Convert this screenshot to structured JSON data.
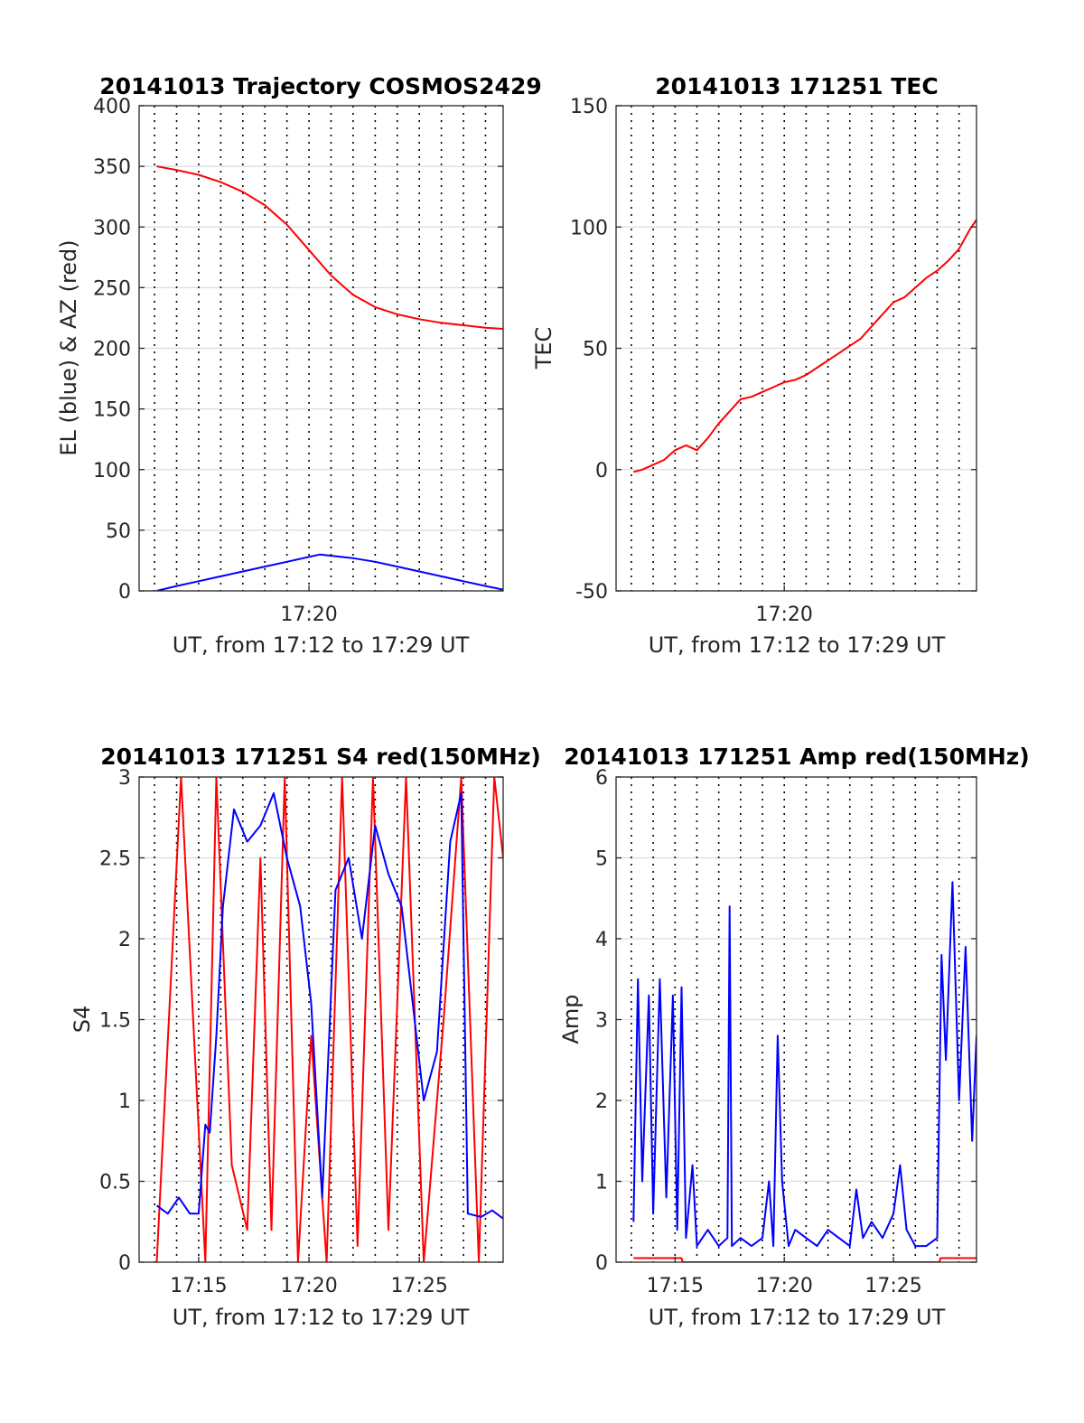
{
  "figure": {
    "panels": [
      {
        "id": "trajectory",
        "title": "20141013 Trajectory COSMOS2429",
        "ylabel": "EL (blue) & AZ (red)",
        "xlabel": "UT, from 17:12 to 17:29 UT",
        "yticks": [
          "0",
          "50",
          "100",
          "150",
          "200",
          "250",
          "300",
          "350",
          "400"
        ],
        "xticks": [
          "17:20"
        ]
      },
      {
        "id": "tec",
        "title": "20141013 171251 TEC",
        "ylabel": "TEC",
        "xlabel": "UT, from 17:12 to 17:29 UT",
        "yticks": [
          "-50",
          "0",
          "50",
          "100",
          "150"
        ],
        "xticks": [
          "17:20"
        ]
      },
      {
        "id": "s4",
        "title": "20141013 171251 S4 red(150MHz)",
        "ylabel": "S4",
        "xlabel": "UT, from 17:12 to 17:29 UT",
        "yticks": [
          "0",
          "0.5",
          "1",
          "1.5",
          "2",
          "2.5",
          "3"
        ],
        "xticks": [
          "17:15",
          "17:20",
          "17:25"
        ]
      },
      {
        "id": "amp",
        "title": "20141013 171251 Amp red(150MHz)",
        "ylabel": "Amp",
        "xlabel": "UT, from 17:12 to 17:29 UT",
        "yticks": [
          "0",
          "1",
          "2",
          "3",
          "4",
          "5",
          "6"
        ],
        "xticks": [
          "17:15",
          "17:20",
          "17:25"
        ]
      }
    ]
  },
  "chart_data": [
    {
      "type": "line",
      "title": "20141013 Trajectory COSMOS2429",
      "xlabel": "UT, from 17:12 to 17:29 UT",
      "ylabel": "EL (blue) & AZ (red)",
      "x_unit": "minutes of hour 17 (UT)",
      "xlim": [
        12.3,
        28.8
      ],
      "ylim": [
        0,
        400
      ],
      "grid": "horizontal solid, vertical dotted",
      "series": [
        {
          "color": "#ff0000",
          "x": [
            13.1,
            14,
            15,
            16,
            17,
            18,
            19,
            20,
            21,
            22,
            23,
            24,
            25,
            26,
            27,
            28,
            28.8
          ],
          "y": [
            350,
            347,
            343,
            337,
            329,
            318,
            302,
            281,
            260,
            244,
            234,
            228,
            224,
            221,
            219,
            217,
            216
          ]
        },
        {
          "color": "#0000ff",
          "x": [
            13.1,
            14,
            15,
            16,
            17,
            18,
            19,
            20,
            20.5,
            21,
            22,
            23,
            24,
            25,
            26,
            27,
            28,
            28.8
          ],
          "y": [
            0,
            4,
            8,
            12,
            16,
            20,
            24,
            28,
            30,
            29,
            27,
            24,
            20,
            16,
            12,
            8,
            4,
            1
          ]
        }
      ]
    },
    {
      "type": "line",
      "title": "20141013 171251 TEC",
      "xlabel": "UT, from 17:12 to 17:29 UT",
      "ylabel": "TEC",
      "x_unit": "minutes of hour 17 (UT)",
      "xlim": [
        12.3,
        28.8
      ],
      "ylim": [
        -50,
        150
      ],
      "grid": "horizontal solid, vertical dotted",
      "series": [
        {
          "color": "#ff0000",
          "x": [
            13.1,
            13.5,
            14,
            14.5,
            15,
            15.5,
            16,
            16.5,
            17,
            17.5,
            18,
            18.5,
            19,
            19.5,
            20,
            20.5,
            21,
            21.5,
            22,
            22.5,
            23,
            23.5,
            24,
            24.5,
            25,
            25.5,
            26,
            26.5,
            27,
            27.5,
            28,
            28.5,
            28.8
          ],
          "y": [
            -1,
            0,
            2,
            4,
            8,
            10,
            8,
            13,
            19,
            24,
            29,
            30,
            32,
            34,
            36,
            37,
            39,
            42,
            45,
            48,
            51,
            54,
            59,
            64,
            69,
            71,
            75,
            79,
            82,
            86,
            91,
            99,
            103
          ]
        }
      ]
    },
    {
      "type": "line",
      "title": "20141013 171251 S4 red(150MHz)",
      "xlabel": "UT, from 17:12 to 17:29 UT",
      "ylabel": "S4",
      "x_unit": "minutes of hour 17 (UT)",
      "xlim": [
        12.3,
        28.8
      ],
      "ylim": [
        0,
        3
      ],
      "grid": "horizontal solid, vertical dotted",
      "series": [
        {
          "color": "#ff0000",
          "x": [
            13.1,
            14.2,
            15.3,
            15.8,
            16.5,
            17.2,
            17.8,
            18.3,
            18.9,
            19.5,
            20.1,
            20.8,
            21.5,
            22.2,
            22.9,
            23.6,
            24.4,
            25.2,
            26.1,
            26.9,
            27.7,
            28.4,
            28.8
          ],
          "y": [
            0,
            3,
            0,
            3,
            0.6,
            0.2,
            2.5,
            0.2,
            3,
            0,
            1.4,
            0,
            3,
            0.1,
            3,
            0.2,
            3,
            0,
            1.5,
            3,
            0,
            3,
            2.5
          ]
        },
        {
          "color": "#0000ff",
          "x": [
            13.1,
            13.6,
            14.1,
            14.6,
            15.0,
            15.3,
            15.5,
            15.8,
            16.1,
            16.6,
            17.2,
            17.8,
            18.4,
            19.0,
            19.6,
            20.1,
            20.6,
            21.2,
            21.8,
            22.4,
            23.0,
            23.6,
            24.2,
            24.7,
            25.2,
            25.8,
            26.4,
            26.9,
            27.2,
            27.8,
            28.3,
            28.8
          ],
          "y": [
            0.35,
            0.3,
            0.4,
            0.3,
            0.3,
            0.85,
            0.8,
            1.4,
            2.2,
            2.8,
            2.6,
            2.7,
            2.9,
            2.5,
            2.2,
            1.6,
            0.4,
            2.3,
            2.5,
            2.0,
            2.7,
            2.4,
            2.2,
            1.6,
            1.0,
            1.3,
            2.6,
            2.9,
            0.3,
            0.28,
            0.32,
            0.27
          ]
        }
      ]
    },
    {
      "type": "line",
      "title": "20141013 171251 Amp red(150MHz)",
      "xlabel": "UT, from 17:12 to 17:29 UT",
      "ylabel": "Amp",
      "x_unit": "minutes of hour 17 (UT)",
      "xlim": [
        12.3,
        28.8
      ],
      "ylim": [
        0,
        6
      ],
      "grid": "horizontal solid, vertical dotted",
      "series": [
        {
          "color": "#ff0000",
          "x": [
            13.1,
            15.3,
            15.35,
            27.1,
            27.15,
            28.8
          ],
          "y": [
            0.05,
            0.05,
            0,
            0,
            0.05,
            0.05
          ]
        },
        {
          "color": "#0000ff",
          "x": [
            13.1,
            13.3,
            13.5,
            13.8,
            14.0,
            14.3,
            14.6,
            14.9,
            15.1,
            15.3,
            15.5,
            15.8,
            16.0,
            16.5,
            17.0,
            17.4,
            17.5,
            17.6,
            18.0,
            18.5,
            19.0,
            19.3,
            19.5,
            19.7,
            19.9,
            20.2,
            20.5,
            21.0,
            21.5,
            22.0,
            22.5,
            23.0,
            23.3,
            23.6,
            24.0,
            24.5,
            25.0,
            25.3,
            25.6,
            26.0,
            26.5,
            27.0,
            27.2,
            27.4,
            27.7,
            28.0,
            28.3,
            28.6,
            28.8
          ],
          "y": [
            0.5,
            3.5,
            1.0,
            3.3,
            0.6,
            3.5,
            0.8,
            3.3,
            0.4,
            3.4,
            0.3,
            1.2,
            0.2,
            0.4,
            0.2,
            0.3,
            4.4,
            0.2,
            0.3,
            0.2,
            0.3,
            1.0,
            0.2,
            2.8,
            1.0,
            0.2,
            0.4,
            0.3,
            0.2,
            0.4,
            0.3,
            0.2,
            0.9,
            0.3,
            0.5,
            0.3,
            0.6,
            1.2,
            0.4,
            0.2,
            0.2,
            0.3,
            3.8,
            2.5,
            4.7,
            2.0,
            3.9,
            1.5,
            2.8
          ]
        }
      ]
    }
  ]
}
